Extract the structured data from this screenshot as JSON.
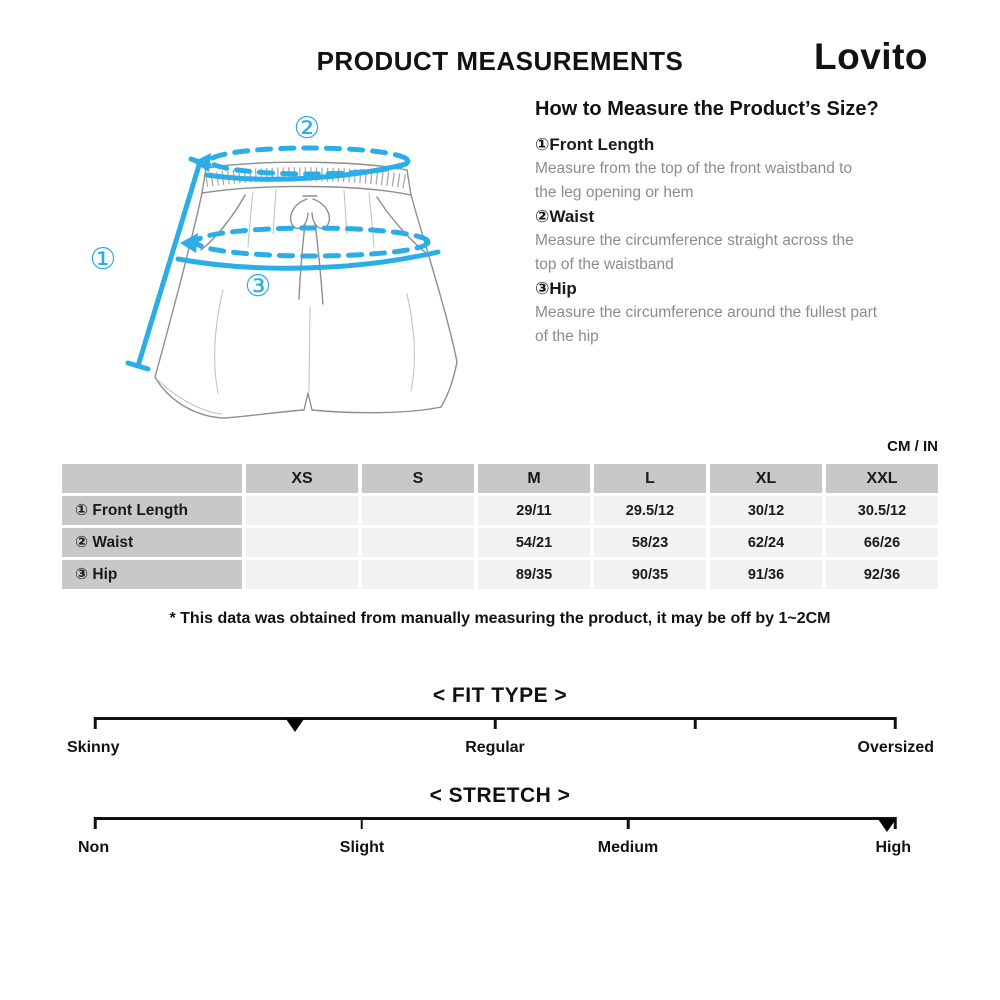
{
  "header": {
    "title": "PRODUCT MEASUREMENTS",
    "brand": "Lovito"
  },
  "diagram": {
    "accent_color": "#2BAEE8",
    "annotations": [
      "①",
      "②",
      "③"
    ]
  },
  "how_to": {
    "heading": "How to Measure the Product’s Size?",
    "items": [
      {
        "num": "①",
        "label": "Front Length",
        "desc": "Measure from the top of the front waistband to\nthe leg opening or hem"
      },
      {
        "num": "②",
        "label": "Waist",
        "desc": "Measure the circumference straight across the\ntop of the waistband"
      },
      {
        "num": "③",
        "label": "Hip",
        "desc": "Measure the circumference around the fullest part\nof the hip"
      }
    ]
  },
  "units_label": "CM / IN",
  "size_table": {
    "columns": [
      "",
      "XS",
      "S",
      "M",
      "L",
      "XL",
      "XXL"
    ],
    "rows": [
      {
        "label": "① Front Length",
        "values": [
          "",
          "",
          "29/11",
          "29.5/12",
          "30/12",
          "30.5/12"
        ]
      },
      {
        "label": "② Waist",
        "values": [
          "",
          "",
          "54/21",
          "58/23",
          "62/24",
          "66/26"
        ]
      },
      {
        "label": "③ Hip",
        "values": [
          "",
          "",
          "89/35",
          "90/35",
          "91/36",
          "92/36"
        ]
      }
    ]
  },
  "footnote": "* This data was obtained from manually measuring the product, it may be off by 1~2CM",
  "scales": {
    "fit_type": {
      "heading": "< FIT TYPE >",
      "labels": [
        "Skinny",
        "Regular",
        "Oversized"
      ],
      "marker_position_pct": 25
    },
    "stretch": {
      "heading": "< STRETCH >",
      "labels": [
        "Non",
        "Slight",
        "Medium",
        "High"
      ],
      "marker_position_pct": 99
    }
  }
}
